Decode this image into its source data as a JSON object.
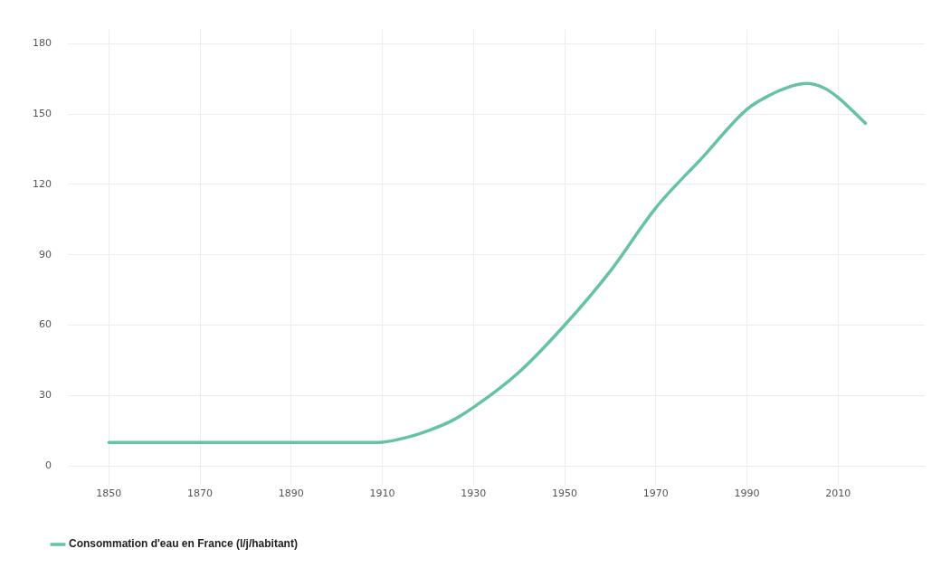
{
  "chart_data": {
    "type": "line",
    "x": [
      1850,
      1870,
      1890,
      1909,
      1915,
      1920,
      1925,
      1930,
      1940,
      1950,
      1960,
      1970,
      1980,
      1990,
      1995,
      2000,
      2003,
      2007,
      2010,
      2016
    ],
    "series": [
      {
        "name": "Consommation d'eau en France (l/j/habitant)",
        "color": "#66c2a5",
        "values": [
          10,
          10,
          10,
          10,
          12,
          15,
          19,
          25,
          40,
          60,
          83,
          110,
          131,
          152,
          158,
          162,
          163,
          161,
          157,
          146
        ]
      }
    ],
    "xlim": [
      1841,
      2029
    ],
    "xticks": [
      1850,
      1870,
      1890,
      1910,
      1930,
      1950,
      1970,
      1990,
      2010
    ],
    "ylim": [
      -6,
      186
    ],
    "yticks": [
      0,
      30,
      60,
      90,
      120,
      150,
      180
    ],
    "grid": true,
    "legend": "bottom left",
    "marker": "none",
    "line_style": "solid"
  }
}
